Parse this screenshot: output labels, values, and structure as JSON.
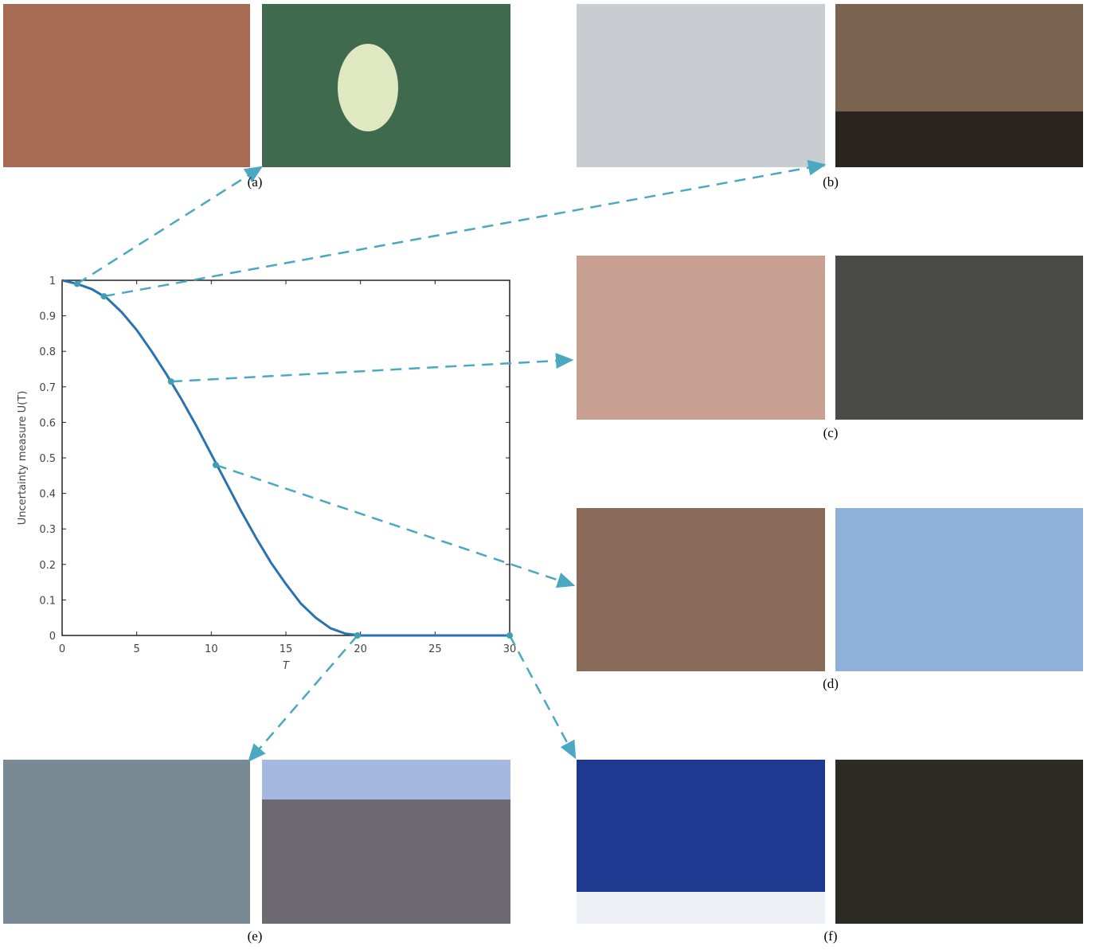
{
  "chart_data": {
    "type": "line",
    "y_label": "Uncertainty measure U(T)",
    "x_label": "T",
    "x": [
      0,
      1,
      2,
      3,
      4,
      5,
      6,
      7,
      8,
      9,
      10,
      11,
      12,
      13,
      14,
      15,
      16,
      17,
      18,
      19,
      20,
      21,
      22,
      23,
      24,
      25,
      26,
      27,
      28,
      29,
      30
    ],
    "values": [
      1,
      0.99,
      0.975,
      0.95,
      0.91,
      0.86,
      0.8,
      0.735,
      0.665,
      0.59,
      0.51,
      0.43,
      0.35,
      0.275,
      0.205,
      0.145,
      0.09,
      0.05,
      0.02,
      0.005,
      0,
      0,
      0,
      0,
      0,
      0,
      0,
      0,
      0,
      0,
      0
    ],
    "color": "#2b73b0",
    "highlight_x": [
      1,
      2.8,
      7.3,
      10.3,
      19.8,
      30
    ],
    "highlight_values": [
      0.99,
      0.955,
      0.715,
      0.48,
      0,
      0
    ],
    "highlight_color": "#3f9fb0",
    "xlim": [
      0,
      30
    ],
    "xticks": [
      0,
      5,
      10,
      15,
      20,
      25,
      30
    ],
    "ylim": [
      0,
      1
    ],
    "yticks": [
      0,
      0.1,
      0.2,
      0.3,
      0.4,
      0.5,
      0.6,
      0.7,
      0.8,
      0.9,
      1
    ]
  },
  "panels": [
    "(a)",
    "(b)",
    "(c)",
    "(d)",
    "(e)",
    "(f)"
  ]
}
